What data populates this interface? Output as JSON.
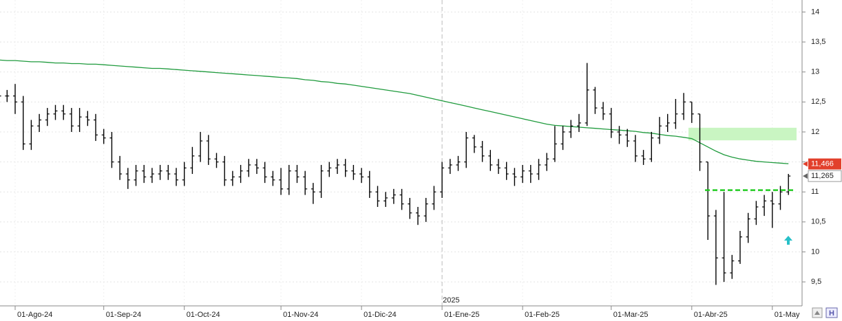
{
  "chart_data": {
    "type": "ohlc",
    "categories": [
      null,
      null,
      "01-Ago-24",
      null,
      null,
      null,
      null,
      null,
      null,
      null,
      null,
      null,
      null,
      "01-Sep-24",
      null,
      null,
      null,
      null,
      null,
      null,
      null,
      null,
      null,
      "01-Oct-24",
      null,
      null,
      null,
      null,
      null,
      null,
      null,
      null,
      null,
      null,
      null,
      "01-Nov-24",
      null,
      null,
      null,
      null,
      null,
      null,
      null,
      null,
      null,
      "01-Dic-24",
      null,
      null,
      null,
      null,
      null,
      null,
      null,
      null,
      null,
      "01-Ene-25",
      null,
      null,
      null,
      null,
      null,
      null,
      null,
      null,
      null,
      "01-Feb-25",
      null,
      null,
      null,
      null,
      null,
      null,
      null,
      null,
      null,
      null,
      "01-Mar-25",
      null,
      null,
      null,
      null,
      null,
      null,
      null,
      null,
      null,
      "01-Abr-25",
      null,
      null,
      null,
      null,
      null,
      null,
      null,
      null,
      null,
      "01-May",
      null,
      null
    ],
    "color": "#000000",
    "open": [
      12.55,
      12.6,
      12.6,
      12.5,
      11.8,
      12.1,
      12.2,
      12.3,
      12.35,
      12.3,
      12.1,
      12.25,
      12.2,
      11.95,
      11.9,
      11.5,
      11.3,
      11.2,
      11.35,
      11.25,
      11.3,
      11.35,
      11.3,
      11.2,
      11.4,
      11.6,
      11.85,
      11.55,
      11.5,
      11.2,
      11.25,
      11.35,
      11.45,
      11.4,
      11.25,
      11.2,
      11.05,
      11.35,
      11.25,
      11.05,
      11.0,
      11.35,
      11.4,
      11.45,
      11.35,
      11.3,
      11.25,
      11.0,
      10.85,
      10.9,
      10.95,
      10.8,
      10.65,
      10.6,
      10.8,
      11.0,
      11.4,
      11.45,
      11.5,
      11.9,
      11.75,
      11.6,
      11.45,
      11.4,
      11.3,
      11.25,
      11.35,
      11.3,
      11.45,
      11.55,
      11.8,
      12.0,
      12.1,
      12.15,
      12.7,
      12.4,
      12.3,
      12.0,
      11.95,
      11.85,
      11.6,
      11.55,
      11.9,
      12.1,
      12.15,
      12.3,
      12.5,
      12.3,
      11.5,
      10.6,
      9.9,
      9.65,
      9.85,
      10.25,
      10.55,
      10.75,
      10.85,
      10.8,
      11.0
    ],
    "high": [
      12.7,
      12.7,
      12.8,
      12.6,
      12.2,
      12.3,
      12.4,
      12.45,
      12.45,
      12.4,
      12.4,
      12.35,
      12.3,
      12.05,
      12.0,
      11.6,
      11.4,
      11.45,
      11.45,
      11.4,
      11.45,
      11.45,
      11.4,
      11.5,
      11.75,
      12.0,
      11.95,
      11.65,
      11.6,
      11.35,
      11.45,
      11.55,
      11.55,
      11.5,
      11.35,
      11.4,
      11.45,
      11.45,
      11.35,
      11.15,
      11.45,
      11.5,
      11.55,
      11.55,
      11.45,
      11.4,
      11.35,
      11.1,
      11.0,
      11.05,
      11.05,
      10.9,
      10.75,
      10.9,
      11.1,
      11.5,
      11.55,
      11.6,
      12.0,
      11.95,
      11.85,
      11.7,
      11.55,
      11.5,
      11.4,
      11.45,
      11.45,
      11.55,
      11.65,
      12.1,
      12.1,
      12.2,
      12.3,
      13.15,
      12.75,
      12.5,
      12.4,
      12.1,
      12.05,
      11.95,
      11.7,
      12.0,
      12.25,
      12.3,
      12.55,
      12.65,
      12.5,
      12.3,
      11.5,
      10.7,
      11.0,
      9.95,
      10.35,
      10.65,
      10.85,
      10.95,
      11.0,
      11.1,
      11.3
    ],
    "low": [
      12.45,
      12.5,
      12.3,
      11.7,
      11.7,
      12.0,
      12.1,
      12.2,
      12.2,
      12.0,
      12.0,
      12.1,
      11.85,
      11.8,
      11.4,
      11.2,
      11.05,
      11.1,
      11.15,
      11.15,
      11.2,
      11.2,
      11.1,
      11.1,
      11.3,
      11.5,
      11.45,
      11.4,
      11.1,
      11.1,
      11.15,
      11.25,
      11.3,
      11.15,
      11.1,
      10.95,
      10.95,
      11.15,
      10.95,
      10.8,
      10.9,
      11.25,
      11.3,
      11.25,
      11.2,
      11.15,
      10.9,
      10.75,
      10.75,
      10.8,
      10.7,
      10.55,
      10.45,
      10.5,
      10.7,
      10.9,
      11.3,
      11.35,
      11.4,
      11.65,
      11.5,
      11.35,
      11.3,
      11.2,
      11.1,
      11.15,
      11.15,
      11.2,
      11.35,
      11.5,
      11.7,
      11.9,
      12.0,
      12.1,
      12.3,
      12.2,
      11.9,
      11.8,
      11.75,
      11.5,
      11.45,
      11.5,
      11.8,
      12.0,
      12.05,
      12.2,
      12.15,
      11.35,
      10.2,
      9.45,
      9.5,
      9.55,
      9.8,
      10.15,
      10.45,
      10.6,
      10.4,
      10.7,
      10.95
    ],
    "close": [
      12.6,
      12.6,
      12.5,
      11.8,
      12.1,
      12.2,
      12.3,
      12.35,
      12.3,
      12.1,
      12.25,
      12.2,
      11.95,
      11.9,
      11.5,
      11.3,
      11.2,
      11.35,
      11.25,
      11.3,
      11.35,
      11.3,
      11.2,
      11.4,
      11.6,
      11.85,
      11.55,
      11.5,
      11.2,
      11.25,
      11.35,
      11.45,
      11.4,
      11.25,
      11.2,
      11.05,
      11.35,
      11.25,
      11.05,
      11.0,
      11.35,
      11.4,
      11.45,
      11.35,
      11.3,
      11.25,
      11.0,
      10.85,
      10.9,
      10.95,
      10.8,
      10.65,
      10.6,
      10.8,
      11.0,
      11.4,
      11.45,
      11.5,
      11.9,
      11.75,
      11.6,
      11.45,
      11.4,
      11.3,
      11.25,
      11.35,
      11.3,
      11.45,
      11.55,
      11.8,
      12.0,
      12.1,
      12.15,
      12.7,
      12.4,
      12.3,
      12.0,
      11.95,
      11.85,
      11.6,
      11.55,
      11.9,
      12.1,
      12.15,
      12.3,
      12.5,
      12.3,
      11.5,
      10.6,
      9.9,
      9.65,
      9.85,
      10.25,
      10.55,
      10.75,
      10.85,
      10.8,
      11.0,
      11.265
    ],
    "moving_average": {
      "color": "#1e9a3c",
      "values": [
        13.2,
        13.19,
        13.19,
        13.18,
        13.17,
        13.17,
        13.16,
        13.15,
        13.15,
        13.14,
        13.14,
        13.13,
        13.13,
        13.12,
        13.11,
        13.1,
        13.09,
        13.08,
        13.07,
        13.06,
        13.06,
        13.05,
        13.04,
        13.03,
        13.02,
        13.01,
        13.0,
        12.99,
        12.98,
        12.97,
        12.96,
        12.95,
        12.94,
        12.93,
        12.92,
        12.91,
        12.9,
        12.89,
        12.87,
        12.86,
        12.84,
        12.83,
        12.81,
        12.8,
        12.78,
        12.76,
        12.74,
        12.72,
        12.7,
        12.68,
        12.66,
        12.64,
        12.61,
        12.58,
        12.55,
        12.52,
        12.49,
        12.46,
        12.43,
        12.4,
        12.37,
        12.34,
        12.31,
        12.28,
        12.25,
        12.22,
        12.19,
        12.16,
        12.13,
        12.11,
        12.1,
        12.09,
        12.08,
        12.07,
        12.06,
        12.05,
        12.04,
        12.03,
        12.02,
        12.01,
        11.99,
        11.98,
        11.96,
        11.94,
        11.93,
        11.91,
        11.89,
        11.82,
        11.75,
        11.68,
        11.62,
        11.58,
        11.55,
        11.53,
        11.51,
        11.5,
        11.49,
        11.48,
        11.47
      ]
    },
    "ylim": [
      9.1,
      14.2
    ],
    "yticks": [
      {
        "value": 9.5,
        "label": "9,5"
      },
      10,
      {
        "value": 10.5,
        "label": "10,5"
      },
      11,
      {
        "value": 11.5,
        "label": "11,5"
      },
      12,
      {
        "value": 12.5,
        "label": "12,5"
      },
      13,
      {
        "value": 13.5,
        "label": "13,5"
      },
      14
    ],
    "grid": true,
    "year_label": "2025",
    "price_labels": [
      {
        "value": 11.466,
        "label": "11,466",
        "color": "#e2402c"
      },
      {
        "value": 11.265,
        "label": "11,265",
        "color": "#ffffff"
      }
    ],
    "support_level": {
      "value": 11.03,
      "color": "#22cc22"
    },
    "resistance_zone": {
      "range": [
        11.86,
        12.07
      ],
      "color": "#c9f5c2"
    }
  }
}
